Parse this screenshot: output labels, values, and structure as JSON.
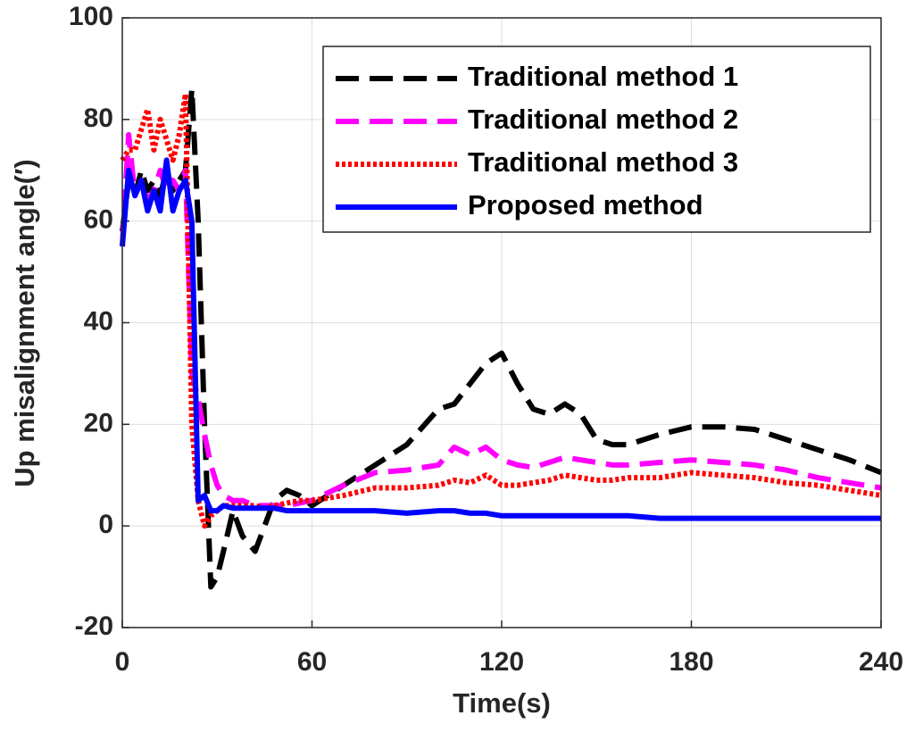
{
  "chart_data": {
    "type": "line",
    "xlabel": "Time(s)",
    "ylabel": "Up misalignment angle(′)",
    "x": [
      0,
      2,
      4,
      6,
      8,
      10,
      12,
      14,
      16,
      18,
      20,
      22,
      24,
      26,
      28,
      30,
      32,
      35,
      38,
      42,
      45,
      48,
      52,
      56,
      60,
      70,
      80,
      90,
      100,
      105,
      110,
      115,
      120,
      125,
      130,
      135,
      140,
      145,
      150,
      155,
      160,
      170,
      180,
      190,
      200,
      210,
      220,
      230,
      240
    ],
    "series": [
      {
        "name": "Traditional method 1",
        "color": "#000000",
        "line_style": "dashed",
        "values": [
          58,
          68,
          65,
          70,
          66,
          68,
          65,
          70,
          66,
          68,
          70,
          86,
          60,
          20,
          -12,
          -10,
          -5,
          3,
          -2,
          -5,
          0,
          5,
          7,
          6,
          4,
          8,
          12,
          16,
          23,
          24,
          28,
          32,
          34,
          28,
          23,
          22,
          24,
          22,
          17,
          16,
          16,
          18,
          19.5,
          19.5,
          19,
          17,
          15,
          13,
          10.5
        ]
      },
      {
        "name": "Traditional method 2",
        "color": "#ff00ff",
        "line_style": "dashed",
        "values": [
          55,
          77,
          65,
          68,
          64,
          66,
          70,
          66,
          68,
          66,
          70,
          30,
          25,
          18,
          12,
          8,
          6,
          5,
          5,
          4,
          4,
          4,
          4,
          4.5,
          5,
          8,
          10.5,
          11,
          12,
          15.5,
          14,
          15.5,
          13,
          12,
          11.5,
          12.5,
          13.5,
          13,
          12.5,
          12,
          12,
          12.5,
          13,
          12.5,
          12,
          11,
          9.5,
          8.5,
          7.5
        ]
      },
      {
        "name": "Traditional method 3",
        "color": "#ff0000",
        "line_style": "dotted",
        "values": [
          72,
          74,
          74,
          78,
          82,
          74,
          80,
          76,
          72,
          77,
          85,
          20,
          5,
          0,
          2,
          3,
          4,
          4,
          4,
          4,
          3.5,
          4,
          4.5,
          5,
          5,
          6,
          7.5,
          7.5,
          8,
          9,
          8.5,
          10,
          8,
          8,
          8.5,
          9,
          10,
          9.5,
          9,
          9,
          9.5,
          9.5,
          10.5,
          10,
          9.5,
          8.5,
          8,
          7,
          6
        ]
      },
      {
        "name": "Proposed method",
        "color": "#0000ff",
        "line_style": "solid",
        "values": [
          55,
          70,
          65,
          68,
          62,
          66,
          62,
          72,
          62,
          66,
          68,
          60,
          5,
          6,
          3,
          3,
          4,
          3.5,
          3.5,
          3.5,
          3.5,
          3.5,
          3,
          3,
          3,
          3,
          3,
          2.5,
          3,
          3,
          2.5,
          2.5,
          2,
          2,
          2,
          2,
          2,
          2,
          2,
          2,
          2,
          1.5,
          1.5,
          1.5,
          1.5,
          1.5,
          1.5,
          1.5,
          1.5
        ]
      }
    ],
    "xlim": [
      0,
      240
    ],
    "xticks": [
      0,
      60,
      120,
      180,
      240
    ],
    "ylim": [
      -20,
      100
    ],
    "yticks": [
      -20,
      0,
      20,
      40,
      60,
      80,
      100
    ],
    "grid": true,
    "legend": "upper right"
  }
}
